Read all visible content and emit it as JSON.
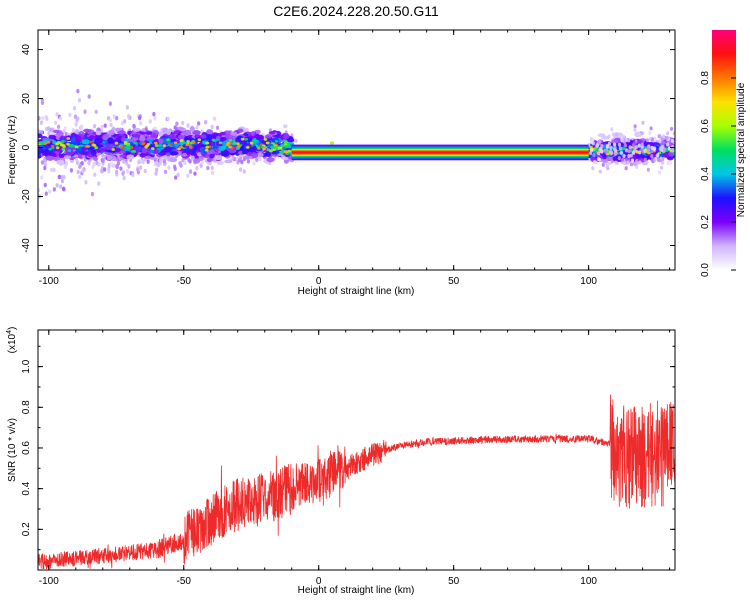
{
  "title": "C2E6.2024.228.20.50.G11",
  "colors": {
    "snr_line": "#ee2a2a",
    "colorscale": [
      "#ffffff",
      "#cfb4ff",
      "#7a00ff",
      "#1e10ff",
      "#00c8e6",
      "#00e060",
      "#a8ff00",
      "#ffe000",
      "#ff7800",
      "#ff1010",
      "#ff007a"
    ]
  },
  "chart_data": [
    {
      "type": "heatmap",
      "name": "spectrogram",
      "xlabel": "Height of straight line (km)",
      "ylabel": "Frequency (Hz)",
      "xlim": [
        -104,
        132
      ],
      "ylim": [
        -50,
        48
      ],
      "x_ticks": [
        -100,
        -50,
        0,
        50,
        100
      ],
      "y_ticks": [
        -40,
        -20,
        0,
        20,
        40
      ],
      "colorbar": {
        "label": "Normalized spectral amplitude",
        "range": [
          0,
          1
        ],
        "ticks": [
          "0.0",
          "0.2",
          "0.4",
          "0.6",
          "0.8"
        ],
        "tick_values": [
          0,
          0.2,
          0.4,
          0.6,
          0.8
        ]
      },
      "bands": [
        {
          "x": [
            -104,
            -10
          ],
          "center_hz": 1,
          "half_width_hz": 5,
          "amplitude": 0.3
        },
        {
          "x": [
            -10,
            100
          ],
          "center_hz": -2,
          "half_width_hz": 1.5,
          "amplitude": 1.0
        },
        {
          "x": [
            100,
            132
          ],
          "center_hz": -1,
          "half_width_hz": 4,
          "amplitude": 0.3
        }
      ],
      "grid": false
    },
    {
      "type": "line",
      "name": "snr",
      "xlabel": "Height of straight line (km)",
      "ylabel": "SNR (10 * v/v)",
      "y_multiplier": "(x10",
      "y_multiplier_exp": "4",
      "xlim": [
        -104,
        132
      ],
      "ylim": [
        0,
        1.18
      ],
      "x_ticks": [
        -100,
        -50,
        0,
        50,
        100
      ],
      "y_ticks": [
        0.2,
        0.4,
        0.6,
        0.8,
        1.0
      ],
      "y_tick_labels": [
        "0.2",
        "0.4",
        "0.6",
        "0.8",
        "1.0"
      ],
      "envelope": {
        "x": [
          -104,
          -80,
          -60,
          -50,
          -40,
          -30,
          -20,
          -10,
          0,
          10,
          20,
          30,
          40,
          60,
          80,
          100,
          108,
          112,
          120,
          126,
          132
        ],
        "y": [
          0.04,
          0.07,
          0.1,
          0.15,
          0.25,
          0.32,
          0.35,
          0.4,
          0.44,
          0.5,
          0.57,
          0.61,
          0.63,
          0.64,
          0.645,
          0.645,
          0.62,
          0.55,
          0.56,
          0.58,
          0.59
        ]
      },
      "grid": false
    }
  ]
}
